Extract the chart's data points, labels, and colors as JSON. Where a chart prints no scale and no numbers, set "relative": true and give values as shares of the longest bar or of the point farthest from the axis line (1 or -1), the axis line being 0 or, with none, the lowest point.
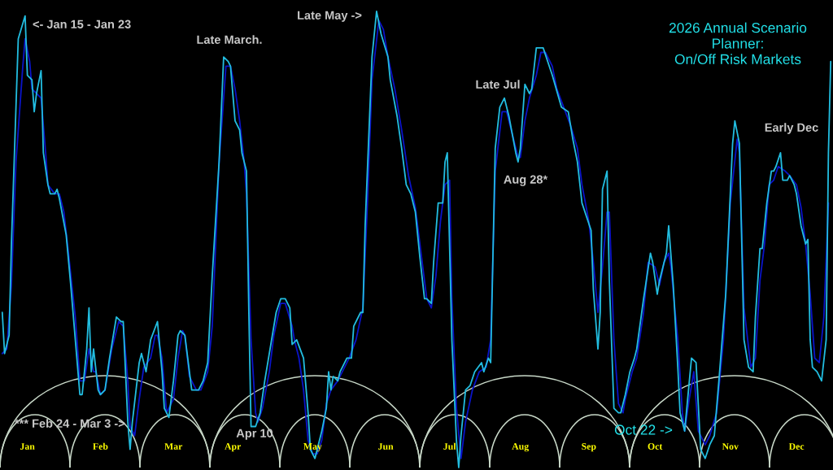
{
  "chart_data": {
    "type": "line",
    "relative": true,
    "title": "2026 Annual Scenario\nPlanner:\nOn/Off Risk Markets",
    "annotations": [
      "<- Jan 15 - Jan 23",
      "Late March.",
      "Late May ->",
      "Late Jul",
      "Aug 28*",
      "Early Dec",
      "*** Feb 24 - Mar 3 ->",
      "Apr 10",
      "Oct 22 ->"
    ],
    "xlim": [
      "2026-01-01",
      "2027-01-01"
    ],
    "xticks": [
      {
        "value": "2026-01-13",
        "label": "Jan"
      },
      {
        "value": "2026-02-14",
        "label": "Feb"
      },
      {
        "value": "2026-03-18",
        "label": "Mar"
      },
      {
        "value": "2026-04-13",
        "label": "Apr"
      },
      {
        "value": "2026-05-18",
        "label": "May"
      },
      {
        "value": "2026-06-19",
        "label": "Jun"
      },
      {
        "value": "2026-07-17",
        "label": "Jul"
      },
      {
        "value": "2026-08-17",
        "label": "Aug"
      },
      {
        "value": "2026-09-16",
        "label": "Sep"
      },
      {
        "value": "2026-10-15",
        "label": "Oct"
      },
      {
        "value": "2026-11-17",
        "label": "Nov"
      },
      {
        "value": "2026-12-16",
        "label": "Dec"
      }
    ],
    "series": [
      {
        "color": "#0a14c8",
        "x": [
          "2026-01-02",
          "2026-01-04",
          "2026-01-06",
          "2026-01-08",
          "2026-01-11",
          "2026-01-12",
          "2026-01-14",
          "2026-01-15",
          "2026-01-17",
          "2026-01-19",
          "2026-01-21",
          "2026-01-22",
          "2026-01-25",
          "2026-01-27",
          "2026-01-29",
          "2026-01-31",
          "2026-02-03",
          "2026-02-05",
          "2026-02-07",
          "2026-02-09",
          "2026-02-11",
          "2026-02-12",
          "2026-02-14",
          "2026-02-16",
          "2026-02-19",
          "2026-02-22",
          "2026-02-24",
          "2026-02-26",
          "2026-02-27",
          "2026-03-01",
          "2026-03-03",
          "2026-03-05",
          "2026-03-08",
          "2026-03-10",
          "2026-03-11",
          "2026-03-13",
          "2026-03-15",
          "2026-03-18",
          "2026-03-20",
          "2026-03-22",
          "2026-03-23",
          "2026-03-25",
          "2026-03-28",
          "2026-03-30",
          "2026-04-02",
          "2026-04-04",
          "2026-04-07",
          "2026-04-10",
          "2026-04-12",
          "2026-04-14",
          "2026-04-16",
          "2026-04-18",
          "2026-04-19",
          "2026-04-21",
          "2026-04-23",
          "2026-04-24",
          "2026-04-26",
          "2026-04-29",
          "2026-05-01",
          "2026-05-04",
          "2026-05-06",
          "2026-05-09",
          "2026-05-10",
          "2026-05-12",
          "2026-05-14",
          "2026-05-16",
          "2026-05-18",
          "2026-05-20",
          "2026-05-22",
          "2026-05-24",
          "2026-05-26",
          "2026-05-29",
          "2026-05-31",
          "2026-06-03",
          "2026-06-06",
          "2026-06-09",
          "2026-06-11",
          "2026-06-13",
          "2026-06-16",
          "2026-06-18",
          "2026-06-20",
          "2026-06-23",
          "2026-06-26",
          "2026-06-29",
          "2026-07-02",
          "2026-07-05",
          "2026-07-07",
          "2026-07-09",
          "2026-07-11",
          "2026-07-13",
          "2026-07-15",
          "2026-07-17",
          "2026-07-18",
          "2026-07-20",
          "2026-07-22",
          "2026-07-24",
          "2026-07-27",
          "2026-07-30",
          "2026-08-02",
          "2026-08-04",
          "2026-08-06",
          "2026-08-09",
          "2026-08-11",
          "2026-08-14",
          "2026-08-16",
          "2026-08-17",
          "2026-08-19",
          "2026-08-21",
          "2026-08-24",
          "2026-08-26",
          "2026-08-28",
          "2026-08-31",
          "2026-09-02",
          "2026-09-05",
          "2026-09-08",
          "2026-09-11",
          "2026-09-13",
          "2026-09-16",
          "2026-09-18",
          "2026-09-20",
          "2026-09-22",
          "2026-09-24",
          "2026-09-25",
          "2026-09-27",
          "2026-09-29",
          "2026-10-01",
          "2026-10-02",
          "2026-10-05",
          "2026-10-07",
          "2026-10-10",
          "2026-10-12",
          "2026-10-15",
          "2026-10-17",
          "2026-10-19",
          "2026-10-21",
          "2026-10-22",
          "2026-10-25",
          "2026-10-27",
          "2026-10-28",
          "2026-10-30",
          "2026-11-01",
          "2026-11-03",
          "2026-11-06",
          "2026-11-08",
          "2026-11-11",
          "2026-11-14",
          "2026-11-17",
          "2026-11-20",
          "2026-11-21",
          "2026-11-23",
          "2026-11-26",
          "2026-11-28",
          "2026-11-30",
          "2026-12-02",
          "2026-12-04",
          "2026-12-06",
          "2026-12-08",
          "2026-12-11",
          "2026-12-13",
          "2026-12-16",
          "2026-12-18",
          "2026-12-20",
          "2026-12-22",
          "2026-12-24",
          "2026-12-26",
          "2026-12-28",
          "2026-12-30"
        ],
        "values": [
          0.25,
          0.26,
          0.4,
          0.67,
          0.88,
          0.94,
          0.89,
          0.83,
          0.82,
          0.81,
          0.69,
          0.62,
          0.6,
          0.6,
          0.56,
          0.47,
          0.33,
          0.19,
          0.19,
          0.26,
          0.21,
          0.21,
          0.16,
          0.17,
          0.26,
          0.32,
          0.31,
          0.19,
          0.09,
          0.07,
          0.15,
          0.22,
          0.24,
          0.29,
          0.29,
          0.24,
          0.12,
          0.15,
          0.24,
          0.3,
          0.29,
          0.2,
          0.17,
          0.17,
          0.21,
          0.31,
          0.67,
          0.88,
          0.88,
          0.83,
          0.76,
          0.67,
          0.6,
          0.28,
          0.12,
          0.1,
          0.13,
          0.21,
          0.29,
          0.36,
          0.36,
          0.31,
          0.28,
          0.24,
          0.17,
          0.06,
          0.03,
          0.03,
          0.06,
          0.14,
          0.17,
          0.19,
          0.21,
          0.24,
          0.28,
          0.35,
          0.58,
          0.85,
          0.98,
          0.96,
          0.9,
          0.83,
          0.74,
          0.64,
          0.57,
          0.45,
          0.37,
          0.35,
          0.42,
          0.54,
          0.62,
          0.63,
          0.37,
          0.13,
          0.02,
          0.1,
          0.17,
          0.21,
          0.22,
          0.28,
          0.65,
          0.78,
          0.78,
          0.72,
          0.68,
          0.68,
          0.76,
          0.81,
          0.86,
          0.91,
          0.91,
          0.88,
          0.83,
          0.79,
          0.75,
          0.7,
          0.62,
          0.54,
          0.45,
          0.34,
          0.44,
          0.56,
          0.56,
          0.28,
          0.14,
          0.12,
          0.15,
          0.21,
          0.24,
          0.34,
          0.45,
          0.44,
          0.4,
          0.45,
          0.47,
          0.44,
          0.28,
          0.12,
          0.08,
          0.15,
          0.21,
          0.08,
          0.05,
          0.07,
          0.12,
          0.28,
          0.58,
          0.72,
          0.69,
          0.35,
          0.22,
          0.24,
          0.41,
          0.49,
          0.62,
          0.63,
          0.66,
          0.65,
          0.64,
          0.62,
          0.57,
          0.49,
          0.38,
          0.24,
          0.23,
          0.33,
          0.58
        ]
      },
      {
        "color": "#22bde0",
        "x": [
          "2026-01-02",
          "2026-01-03",
          "2026-01-05",
          "2026-01-06",
          "2026-01-08",
          "2026-01-09",
          "2026-01-12",
          "2026-01-13",
          "2026-01-15",
          "2026-01-16",
          "2026-01-17",
          "2026-01-19",
          "2026-01-20",
          "2026-01-22",
          "2026-01-23",
          "2026-01-25",
          "2026-01-26",
          "2026-01-27",
          "2026-01-30",
          "2026-02-01",
          "2026-02-03",
          "2026-02-05",
          "2026-02-06",
          "2026-02-08",
          "2026-02-09",
          "2026-02-10",
          "2026-02-11",
          "2026-02-13",
          "2026-02-14",
          "2026-02-16",
          "2026-02-18",
          "2026-02-21",
          "2026-02-23",
          "2026-02-24",
          "2026-02-26",
          "2026-02-27",
          "2026-02-28",
          "2026-03-03",
          "2026-03-04",
          "2026-03-06",
          "2026-03-08",
          "2026-03-11",
          "2026-03-13",
          "2026-03-14",
          "2026-03-16",
          "2026-03-18",
          "2026-03-20",
          "2026-03-21",
          "2026-03-23",
          "2026-03-25",
          "2026-03-26",
          "2026-03-29",
          "2026-03-31",
          "2026-04-02",
          "2026-04-04",
          "2026-04-07",
          "2026-04-09",
          "2026-04-11",
          "2026-04-12",
          "2026-04-14",
          "2026-04-16",
          "2026-04-17",
          "2026-04-19",
          "2026-04-20",
          "2026-04-21",
          "2026-04-23",
          "2026-04-25",
          "2026-04-27",
          "2026-04-30",
          "2026-05-02",
          "2026-05-04",
          "2026-05-06",
          "2026-05-08",
          "2026-05-09",
          "2026-05-11",
          "2026-05-14",
          "2026-05-16",
          "2026-05-17",
          "2026-05-19",
          "2026-05-20",
          "2026-05-22",
          "2026-05-24",
          "2026-05-25",
          "2026-05-26",
          "2026-05-27",
          "2026-05-29",
          "2026-05-30",
          "2026-05-31",
          "2026-06-02",
          "2026-06-04",
          "2026-06-05",
          "2026-06-08",
          "2026-06-09",
          "2026-06-10",
          "2026-06-13",
          "2026-06-15",
          "2026-06-17",
          "2026-06-20",
          "2026-06-21",
          "2026-06-24",
          "2026-06-26",
          "2026-06-28",
          "2026-06-30",
          "2026-07-02",
          "2026-07-04",
          "2026-07-06",
          "2026-07-07",
          "2026-07-09",
          "2026-07-10",
          "2026-07-12",
          "2026-07-14",
          "2026-07-15",
          "2026-07-16",
          "2026-07-18",
          "2026-07-20",
          "2026-07-21",
          "2026-07-22",
          "2026-07-24",
          "2026-07-26",
          "2026-07-28",
          "2026-07-31",
          "2026-08-01",
          "2026-08-03",
          "2026-08-04",
          "2026-08-06",
          "2026-08-08",
          "2026-08-10",
          "2026-08-12",
          "2026-08-15",
          "2026-08-16",
          "2026-08-17",
          "2026-08-19",
          "2026-08-21",
          "2026-08-22",
          "2026-08-24",
          "2026-08-26",
          "2026-08-27",
          "2026-08-29",
          "2026-08-31",
          "2026-09-04",
          "2026-09-07",
          "2026-09-09",
          "2026-09-11",
          "2026-09-13",
          "2026-09-15",
          "2026-09-17",
          "2026-09-18",
          "2026-09-20",
          "2026-09-21",
          "2026-09-22",
          "2026-09-24",
          "2026-09-25",
          "2026-09-27",
          "2026-09-29",
          "2026-09-30",
          "2026-10-02",
          "2026-10-04",
          "2026-10-06",
          "2026-10-07",
          "2026-10-10",
          "2026-10-13",
          "2026-10-14",
          "2026-10-16",
          "2026-10-17",
          "2026-10-20",
          "2026-10-21",
          "2026-10-23",
          "2026-10-25",
          "2026-10-26",
          "2026-10-28",
          "2026-10-31",
          "2026-11-02",
          "2026-11-04",
          "2026-11-06",
          "2026-11-08",
          "2026-11-10",
          "2026-11-12",
          "2026-11-15",
          "2026-11-18",
          "2026-11-19",
          "2026-11-21",
          "2026-11-23",
          "2026-11-25",
          "2026-11-27",
          "2026-11-28",
          "2026-11-30",
          "2026-12-01",
          "2026-12-03",
          "2026-12-05",
          "2026-12-06",
          "2026-12-07",
          "2026-12-09",
          "2026-12-10",
          "2026-12-12",
          "2026-12-13",
          "2026-12-15",
          "2026-12-16",
          "2026-12-18",
          "2026-12-20",
          "2026-12-21",
          "2026-12-22",
          "2026-12-23",
          "2026-12-25",
          "2026-12-27",
          "2026-12-29",
          "2026-12-30",
          "2026-12-31"
        ],
        "values": [
          0.34,
          0.25,
          0.29,
          0.49,
          0.79,
          0.94,
          0.99,
          0.86,
          0.85,
          0.78,
          0.82,
          0.87,
          0.69,
          0.62,
          0.6,
          0.6,
          0.61,
          0.59,
          0.51,
          0.4,
          0.28,
          0.16,
          0.16,
          0.26,
          0.35,
          0.21,
          0.26,
          0.17,
          0.16,
          0.17,
          0.24,
          0.33,
          0.32,
          0.32,
          0.1,
          0.04,
          0.1,
          0.23,
          0.25,
          0.21,
          0.28,
          0.32,
          0.21,
          0.13,
          0.11,
          0.19,
          0.29,
          0.3,
          0.29,
          0.21,
          0.17,
          0.17,
          0.19,
          0.23,
          0.42,
          0.67,
          0.9,
          0.89,
          0.88,
          0.76,
          0.74,
          0.69,
          0.65,
          0.35,
          0.09,
          0.09,
          0.12,
          0.19,
          0.28,
          0.34,
          0.37,
          0.37,
          0.35,
          0.27,
          0.28,
          0.24,
          0.12,
          0.04,
          0.02,
          0.04,
          0.08,
          0.13,
          0.21,
          0.17,
          0.2,
          0.19,
          0.21,
          0.22,
          0.24,
          0.24,
          0.31,
          0.34,
          0.34,
          0.53,
          0.9,
          1.0,
          0.95,
          0.9,
          0.85,
          0.77,
          0.7,
          0.62,
          0.6,
          0.56,
          0.46,
          0.37,
          0.37,
          0.36,
          0.45,
          0.58,
          0.58,
          0.67,
          0.69,
          0.28,
          0.06,
          0,
          0.07,
          0.17,
          0.18,
          0.21,
          0.23,
          0.21,
          0.24,
          0.23,
          0.7,
          0.79,
          0.81,
          0.77,
          0.69,
          0.67,
          0.7,
          0.84,
          0.82,
          0.83,
          0.92,
          0.92,
          0.92,
          0.89,
          0.86,
          0.79,
          0.78,
          0.72,
          0.67,
          0.58,
          0.55,
          0.52,
          0.39,
          0.26,
          0.34,
          0.61,
          0.65,
          0.41,
          0.13,
          0.12,
          0.12,
          0.16,
          0.21,
          0.24,
          0.26,
          0.37,
          0.47,
          0.45,
          0.38,
          0.41,
          0.47,
          0.53,
          0.4,
          0.22,
          0.12,
          0.08,
          0.24,
          0.23,
          0.04,
          0.02,
          0.05,
          0.07,
          0.19,
          0.38,
          0.71,
          0.76,
          0.71,
          0.28,
          0.22,
          0.21,
          0.33,
          0.48,
          0.48,
          0.58,
          0.65,
          0.65,
          0.66,
          0.69,
          0.63,
          0.63,
          0.64,
          0.62,
          0.6,
          0.53,
          0.49,
          0.5,
          0.28,
          0.22,
          0.21,
          0.19,
          0.28,
          0.69,
          0.89
        ]
      }
    ]
  }
}
